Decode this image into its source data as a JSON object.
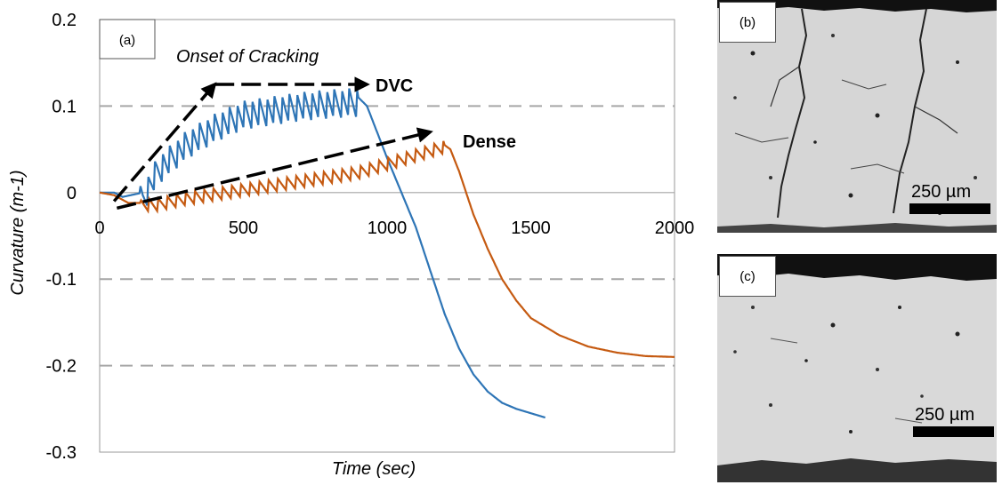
{
  "chart_data": {
    "type": "line",
    "panel_label": "(a)",
    "xlabel": "Time (sec)",
    "ylabel": "Curvature (m-1)",
    "xlim": [
      0,
      2000
    ],
    "ylim": [
      -0.3,
      0.2
    ],
    "x_ticks": [
      "0",
      "500",
      "1000",
      "1500",
      "2000"
    ],
    "y_ticks": [
      "0.2",
      "0.1",
      "0",
      "-0.1",
      "-0.2",
      "-0.3"
    ],
    "grid": "dashed horizontal lines at 0.1, -0.1, -0.2",
    "annotations": {
      "onset": "Onset of Cracking",
      "dvc": "DVC",
      "dense": "Dense"
    },
    "series": [
      {
        "name": "DVC",
        "color": "#2e75b6",
        "x": [
          0,
          50,
          80,
          150,
          200,
          300,
          400,
          500,
          600,
          700,
          800,
          900,
          930,
          1000,
          1050,
          1100,
          1150,
          1200,
          1250,
          1300,
          1350,
          1400,
          1450,
          1500,
          1550
        ],
        "y": [
          0.0,
          0.0,
          -0.005,
          0.0,
          0.03,
          0.06,
          0.08,
          0.095,
          0.1,
          0.105,
          0.108,
          0.11,
          0.1,
          0.04,
          0.0,
          -0.04,
          -0.09,
          -0.14,
          -0.18,
          -0.21,
          -0.23,
          -0.243,
          -0.25,
          -0.255,
          -0.26
        ]
      },
      {
        "name": "Dense",
        "color": "#c55a11",
        "x": [
          0,
          50,
          100,
          200,
          300,
          400,
          500,
          600,
          700,
          800,
          900,
          1000,
          1100,
          1200,
          1220,
          1250,
          1300,
          1350,
          1400,
          1450,
          1500,
          1600,
          1700,
          1800,
          1900,
          2000
        ],
        "y": [
          0.0,
          -0.003,
          -0.012,
          -0.012,
          -0.005,
          0.0,
          0.005,
          0.01,
          0.015,
          0.02,
          0.025,
          0.035,
          0.045,
          0.055,
          0.05,
          0.025,
          -0.025,
          -0.065,
          -0.1,
          -0.125,
          -0.145,
          -0.165,
          -0.178,
          -0.185,
          -0.189,
          -0.19
        ]
      }
    ],
    "arrows": [
      {
        "name": "dvc-rise",
        "x1": 50,
        "y1": -0.01,
        "x2": 400,
        "y2": 0.125
      },
      {
        "name": "dvc-plateau",
        "x1": 400,
        "y1": 0.125,
        "x2": 930,
        "y2": 0.125
      },
      {
        "name": "dense-rise",
        "x1": 60,
        "y1": -0.018,
        "x2": 1150,
        "y2": 0.07
      }
    ]
  },
  "micrographs": [
    {
      "label": "(b)",
      "scale": "250 µm"
    },
    {
      "label": "(c)",
      "scale": "250 µm"
    }
  ]
}
